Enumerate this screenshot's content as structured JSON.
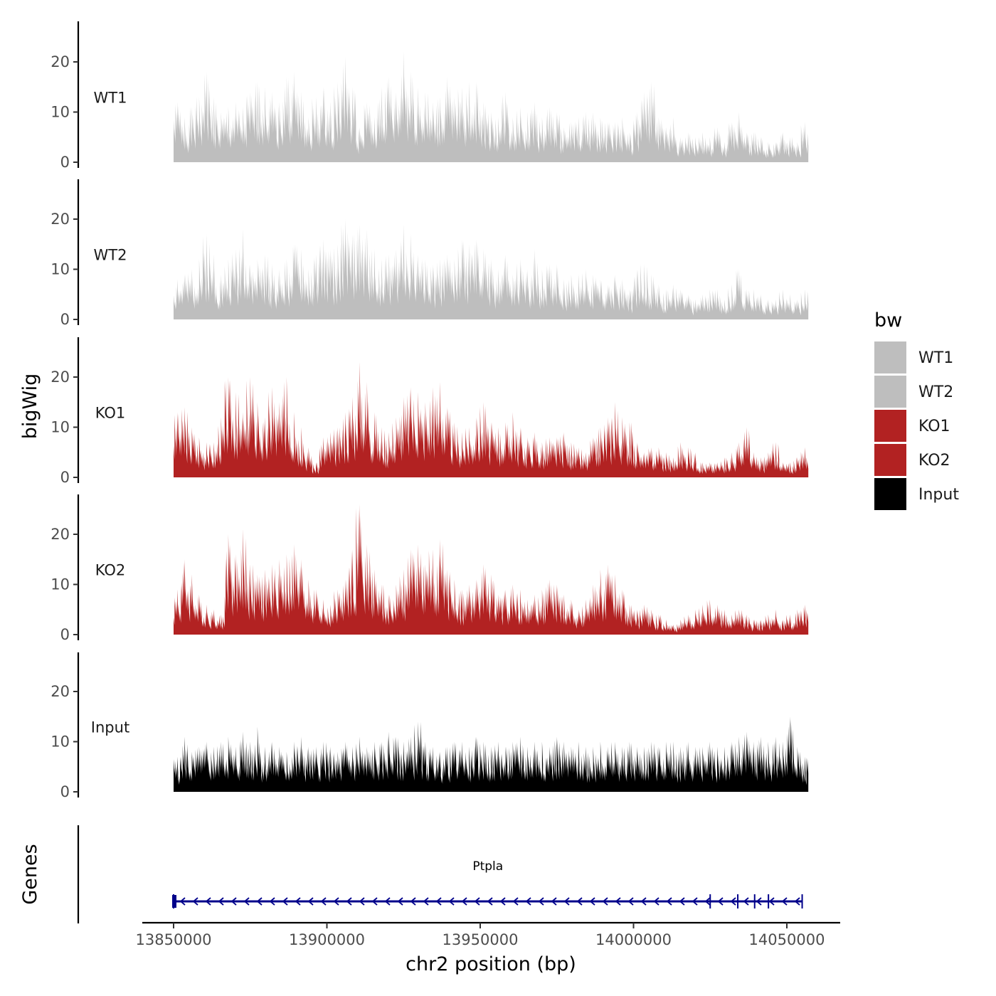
{
  "chart_data": {
    "type": "area",
    "xlabel": "chr2 position (bp)",
    "ylabel": "bigWig",
    "genes_label": "Genes",
    "xlim": [
      13850000,
      14057000
    ],
    "x_ticks": [
      13850000,
      13900000,
      13950000,
      14000000,
      14050000
    ],
    "x_tick_labels": [
      "13850000",
      "13900000",
      "13950000",
      "14000000",
      "14050000"
    ],
    "ylim": [
      0,
      27
    ],
    "y_ticks": [
      0,
      10,
      20
    ],
    "y_tick_labels": [
      "0",
      "10",
      "20"
    ],
    "bin_size_bp": 5000,
    "legend": {
      "title": "bw",
      "entries": [
        {
          "name": "WT1",
          "color": "#bebebe"
        },
        {
          "name": "WT2",
          "color": "#bebebe"
        },
        {
          "name": "KO1",
          "color": "#b22222"
        },
        {
          "name": "KO2",
          "color": "#b22222"
        },
        {
          "name": "Input",
          "color": "#000000"
        }
      ]
    },
    "series": [
      {
        "name": "WT1",
        "color": "#bebebe",
        "x_start": 13850000,
        "values": [
          12,
          9,
          11,
          13,
          18,
          13,
          10,
          11,
          12,
          11,
          14,
          16,
          15,
          14,
          12,
          17,
          18,
          14,
          9,
          13,
          15,
          12,
          16,
          21,
          15,
          7,
          12,
          9,
          15,
          17,
          14,
          22,
          18,
          15,
          14,
          12,
          13,
          17,
          13,
          15,
          16,
          16,
          12,
          10,
          9,
          14,
          9,
          11,
          10,
          12,
          9,
          11,
          10,
          7,
          8,
          9,
          10,
          10,
          9,
          8,
          8,
          9,
          6,
          10,
          14,
          16,
          9,
          7,
          9,
          5,
          6,
          5,
          6,
          5,
          7,
          4,
          8,
          10,
          6,
          6,
          5,
          4,
          4,
          6,
          5,
          4,
          8
        ]
      },
      {
        "name": "WT2",
        "color": "#bebebe",
        "x_start": 13850000,
        "values": [
          8,
          9,
          10,
          12,
          17,
          13,
          9,
          12,
          14,
          18,
          11,
          12,
          13,
          11,
          10,
          12,
          15,
          14,
          10,
          13,
          16,
          14,
          15,
          20,
          17,
          19,
          18,
          14,
          12,
          13,
          14,
          19,
          17,
          13,
          12,
          11,
          12,
          13,
          12,
          16,
          15,
          16,
          14,
          12,
          10,
          13,
          9,
          12,
          10,
          14,
          10,
          11,
          11,
          8,
          9,
          9,
          10,
          9,
          8,
          7,
          9,
          8,
          6,
          10,
          11,
          9,
          7,
          6,
          7,
          6,
          5,
          4,
          5,
          6,
          6,
          4,
          7,
          10,
          6,
          6,
          5,
          4,
          4,
          6,
          5,
          4,
          6
        ]
      },
      {
        "name": "KO1",
        "color": "#b22222",
        "x_start": 13850000,
        "values": [
          13,
          14,
          10,
          8,
          7,
          7,
          12,
          20,
          17,
          13,
          20,
          15,
          12,
          18,
          15,
          20,
          13,
          10,
          6,
          3,
          8,
          9,
          10,
          13,
          16,
          23,
          19,
          13,
          10,
          9,
          12,
          16,
          18,
          17,
          15,
          18,
          19,
          14,
          11,
          9,
          10,
          12,
          15,
          11,
          10,
          11,
          13,
          10,
          8,
          9,
          7,
          8,
          8,
          9,
          7,
          6,
          5,
          8,
          10,
          12,
          15,
          12,
          11,
          7,
          5,
          6,
          6,
          5,
          4,
          7,
          6,
          5,
          3,
          3,
          3,
          4,
          5,
          7,
          10,
          5,
          4,
          5,
          7,
          3,
          3,
          4,
          6
        ]
      },
      {
        "name": "KO2",
        "color": "#b22222",
        "x_start": 13850000,
        "values": [
          9,
          15,
          12,
          8,
          6,
          5,
          4,
          20,
          16,
          21,
          14,
          12,
          13,
          14,
          15,
          16,
          18,
          15,
          11,
          9,
          7,
          6,
          9,
          11,
          17,
          26,
          18,
          13,
          10,
          8,
          10,
          13,
          17,
          18,
          14,
          17,
          19,
          13,
          11,
          9,
          10,
          11,
          14,
          12,
          8,
          9,
          10,
          9,
          7,
          8,
          9,
          11,
          10,
          8,
          7,
          5,
          7,
          10,
          13,
          14,
          12,
          9,
          6,
          5,
          6,
          5,
          4,
          3,
          2,
          3,
          4,
          5,
          6,
          7,
          6,
          5,
          4,
          5,
          4,
          3,
          3,
          4,
          5,
          3,
          4,
          5,
          6
        ]
      },
      {
        "name": "Input",
        "color": "#000000",
        "x_start": 13850000,
        "values": [
          7,
          11,
          8,
          9,
          10,
          9,
          10,
          11,
          9,
          12,
          10,
          13,
          9,
          10,
          9,
          8,
          10,
          11,
          9,
          9,
          10,
          9,
          8,
          10,
          9,
          11,
          9,
          10,
          10,
          12,
          11,
          10,
          11,
          14,
          10,
          9,
          8,
          9,
          10,
          10,
          9,
          11,
          10,
          9,
          10,
          9,
          10,
          11,
          9,
          10,
          10,
          9,
          11,
          10,
          9,
          10,
          9,
          9,
          10,
          9,
          10,
          9,
          10,
          9,
          9,
          10,
          9,
          10,
          10,
          9,
          10,
          9,
          9,
          10,
          9,
          9,
          10,
          11,
          12,
          10,
          11,
          10,
          11,
          10,
          15,
          9,
          7
        ]
      }
    ],
    "genes": [
      {
        "name": "Ptpla",
        "start": 13850000,
        "end": 14055000,
        "strand": "-",
        "color": "#00008b",
        "exons": [
          13850000,
          14025000,
          14034000,
          14039500,
          14044000,
          14055000
        ]
      }
    ]
  }
}
